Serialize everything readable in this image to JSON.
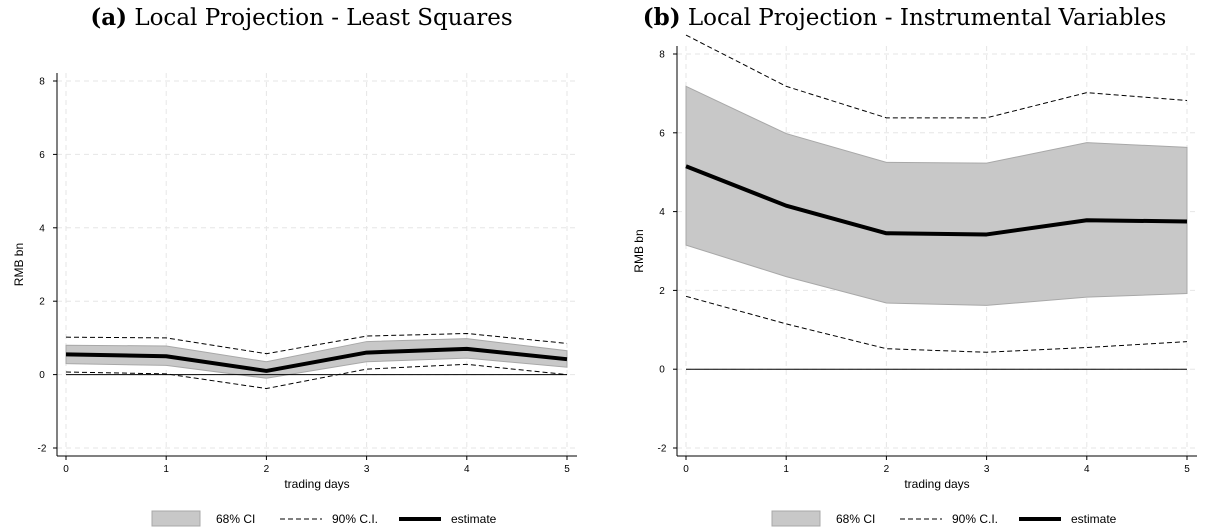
{
  "colors": {
    "ci68_fill": "#c8c8c8",
    "ci68_edge": "#a8a8a8",
    "estimate": "#000000",
    "ci90": "#000000",
    "grid": "#e6e6e6",
    "zero_line": "#000000"
  },
  "chart_data": [
    {
      "type": "line",
      "panel_letter": "(a)",
      "title": "Local Projection - Least Squares",
      "xlabel": "trading days",
      "ylabel": "RMB bn",
      "x": [
        0,
        1,
        2,
        3,
        4,
        5
      ],
      "xlim": [
        0,
        5
      ],
      "ylim": [
        -2,
        8
      ],
      "yticks": [
        -2,
        0,
        2,
        4,
        6,
        8
      ],
      "xticks": [
        0,
        1,
        2,
        3,
        4,
        5
      ],
      "grid": true,
      "zero_line": true,
      "legend_placement": "bottom",
      "series": [
        {
          "name": "68% CI",
          "kind": "band",
          "lower": [
            0.3,
            0.25,
            -0.1,
            0.35,
            0.45,
            0.2
          ],
          "upper": [
            0.8,
            0.78,
            0.35,
            0.9,
            0.98,
            0.65
          ]
        },
        {
          "name": "90% C.I.",
          "kind": "dashed",
          "lower": [
            0.07,
            0.02,
            -0.38,
            0.15,
            0.28,
            0.0
          ],
          "upper": [
            1.02,
            1.0,
            0.57,
            1.05,
            1.12,
            0.85
          ]
        },
        {
          "name": "estimate",
          "kind": "line",
          "values": [
            0.55,
            0.5,
            0.1,
            0.6,
            0.7,
            0.42
          ]
        }
      ]
    },
    {
      "type": "line",
      "panel_letter": "(b)",
      "title": "Local Projection - Instrumental Variables",
      "xlabel": "trading days",
      "ylabel": "RMB bn",
      "x": [
        0,
        1,
        2,
        3,
        4,
        5
      ],
      "xlim": [
        0,
        5
      ],
      "ylim": [
        -2,
        8
      ],
      "yticks": [
        -2,
        0,
        2,
        4,
        6,
        8
      ],
      "xticks": [
        0,
        1,
        2,
        3,
        4,
        5
      ],
      "grid": true,
      "zero_line": true,
      "legend_placement": "bottom",
      "series": [
        {
          "name": "68% CI",
          "kind": "band",
          "lower": [
            3.15,
            2.35,
            1.68,
            1.62,
            1.83,
            1.92
          ],
          "upper": [
            7.18,
            5.98,
            5.25,
            5.23,
            5.75,
            5.63
          ]
        },
        {
          "name": "90% C.I.",
          "kind": "dashed",
          "lower": [
            1.85,
            1.15,
            0.52,
            0.43,
            0.55,
            0.7
          ],
          "upper": [
            8.48,
            7.18,
            6.38,
            6.38,
            7.02,
            6.82
          ]
        },
        {
          "name": "estimate",
          "kind": "line",
          "values": [
            5.15,
            4.15,
            3.45,
            3.42,
            3.78,
            3.75
          ]
        }
      ]
    }
  ]
}
